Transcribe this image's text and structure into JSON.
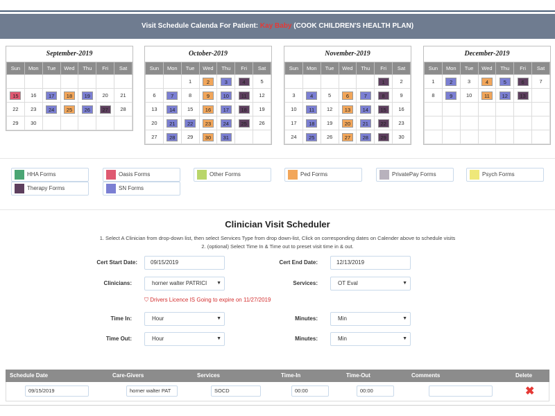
{
  "header": {
    "title_prefix": "Visit Schedule Calenda For Patient: ",
    "patient_name": "Kay Baby",
    "plan": " (COOK CHILDREN'S HEALTH PLAN)"
  },
  "weekdays": [
    "Sun",
    "Mon",
    "Tue",
    "Wed",
    "Thu",
    "Fri",
    "Sat"
  ],
  "calendars": [
    {
      "title": "September-2019",
      "weeks": [
        [
          "",
          "",
          "",
          "",
          "",
          "",
          ""
        ],
        [
          {
            "d": "15",
            "c": "oa"
          },
          "16",
          {
            "d": "17",
            "c": "sn"
          },
          {
            "d": "18",
            "c": "ped"
          },
          {
            "d": "19",
            "c": "sn"
          },
          "20",
          "21"
        ],
        [
          "22",
          "23",
          {
            "d": "24",
            "c": "sn"
          },
          {
            "d": "25",
            "c": "ped"
          },
          {
            "d": "26",
            "c": "sn"
          },
          {
            "d": "27",
            "c": "th"
          },
          "28"
        ],
        [
          "29",
          "30",
          "",
          "",
          "",
          "",
          ""
        ]
      ]
    },
    {
      "title": "October-2019",
      "weeks": [
        [
          "",
          "",
          "1",
          {
            "d": "2",
            "c": "ped"
          },
          {
            "d": "3",
            "c": "sn"
          },
          {
            "d": "4",
            "c": "th"
          },
          "5"
        ],
        [
          "6",
          {
            "d": "7",
            "c": "sn"
          },
          "8",
          {
            "d": "9",
            "c": "ped"
          },
          {
            "d": "10",
            "c": "sn"
          },
          {
            "d": "11",
            "c": "th"
          },
          "12"
        ],
        [
          "13",
          {
            "d": "14",
            "c": "sn"
          },
          "15",
          {
            "d": "16",
            "c": "ped"
          },
          {
            "d": "17",
            "c": "sn"
          },
          {
            "d": "18",
            "c": "th"
          },
          "19"
        ],
        [
          "20",
          {
            "d": "21",
            "c": "sn"
          },
          {
            "d": "22",
            "c": "sn"
          },
          {
            "d": "23",
            "c": "ped"
          },
          {
            "d": "24",
            "c": "sn"
          },
          {
            "d": "25",
            "c": "th"
          },
          "26"
        ],
        [
          "27",
          {
            "d": "28",
            "c": "sn"
          },
          "29",
          {
            "d": "30",
            "c": "ped"
          },
          {
            "d": "31",
            "c": "sn"
          },
          "",
          ""
        ]
      ]
    },
    {
      "title": "November-2019",
      "weeks": [
        [
          "",
          "",
          "",
          "",
          "",
          {
            "d": "1",
            "c": "th"
          },
          "2"
        ],
        [
          "3",
          {
            "d": "4",
            "c": "sn"
          },
          "5",
          {
            "d": "6",
            "c": "ped"
          },
          {
            "d": "7",
            "c": "sn"
          },
          {
            "d": "8",
            "c": "th"
          },
          "9"
        ],
        [
          "10",
          {
            "d": "11",
            "c": "sn"
          },
          "12",
          {
            "d": "13",
            "c": "ped"
          },
          {
            "d": "14",
            "c": "sn"
          },
          {
            "d": "15",
            "c": "th"
          },
          "16"
        ],
        [
          "17",
          {
            "d": "18",
            "c": "sn"
          },
          "19",
          {
            "d": "20",
            "c": "ped"
          },
          {
            "d": "21",
            "c": "sn"
          },
          {
            "d": "22",
            "c": "th"
          },
          "23"
        ],
        [
          "24",
          {
            "d": "25",
            "c": "sn"
          },
          "26",
          {
            "d": "27",
            "c": "ped"
          },
          {
            "d": "28",
            "c": "sn"
          },
          {
            "d": "29",
            "c": "th"
          },
          "30"
        ]
      ]
    },
    {
      "title": "December-2019",
      "weeks": [
        [
          "1",
          {
            "d": "2",
            "c": "sn"
          },
          "3",
          {
            "d": "4",
            "c": "ped"
          },
          {
            "d": "5",
            "c": "sn"
          },
          {
            "d": "6",
            "c": "th"
          },
          "7"
        ],
        [
          "8",
          {
            "d": "9",
            "c": "sn"
          },
          "10",
          {
            "d": "11",
            "c": "ped"
          },
          {
            "d": "12",
            "c": "sn"
          },
          {
            "d": "13",
            "c": "th"
          },
          ""
        ],
        [
          "",
          "",
          "",
          "",
          "",
          "",
          ""
        ],
        [
          "",
          "",
          "",
          "",
          "",
          "",
          ""
        ],
        [
          "",
          "",
          "",
          "",
          "",
          "",
          ""
        ]
      ]
    }
  ],
  "legend": [
    {
      "label": "HHA Forms",
      "color": "#4aa574"
    },
    {
      "label": "Oasis Forms",
      "color": "#df5a72"
    },
    {
      "label": "Other Forms",
      "color": "#b9d66a"
    },
    {
      "label": "Ped Forms",
      "color": "#f2a65a"
    },
    {
      "label": "PrivatePay Forms",
      "color": "#b8b2bd"
    },
    {
      "label": "Psych Forms",
      "color": "#efe87a"
    },
    {
      "label": "Therapy Forms",
      "color": "#5d3f5e"
    },
    {
      "label": "SN Forms",
      "color": "#7b7fd3"
    }
  ],
  "scheduler": {
    "title": "Clinician Visit Scheduler",
    "instruction1": "1. Select A Clinician from drop-down list, then select Services Type from drop down-list, Click on corresponding dates on Calender above to schedule visits",
    "instruction2": "2. (optional) Select Time In & Time out to preset visit time in & out.",
    "cert_start_label": "Cert Start Date:",
    "cert_start_value": "09/15/2019",
    "cert_end_label": "Cert End Date:",
    "cert_end_value": "12/13/2019",
    "clinicians_label": "Clinicians:",
    "clinician_value": "horner walter PATRICI",
    "services_label": "Services:",
    "service_value": "OT Eval",
    "warning": "Drivers Licence IS Going to expire on 11/27/2019",
    "time_in_label": "Time In:",
    "time_in_value": "Hour",
    "minutes_label": "Minutes:",
    "minutes_in_value": "Min",
    "time_out_label": "Time Out:",
    "time_out_value": "Hour",
    "minutes_out_label": "Minutes:",
    "minutes_out_value": "Min"
  },
  "table": {
    "headers": [
      "Schedule Date",
      "Care-Givers",
      "Services",
      "Time-In",
      "Time-Out",
      "Comments",
      "Delete"
    ],
    "row": {
      "schedule_date": "09/15/2019",
      "care_giver": "horner walter  PAT",
      "service": "SOCD",
      "time_in": "00:00",
      "time_out": "00:00",
      "comments": ""
    }
  }
}
